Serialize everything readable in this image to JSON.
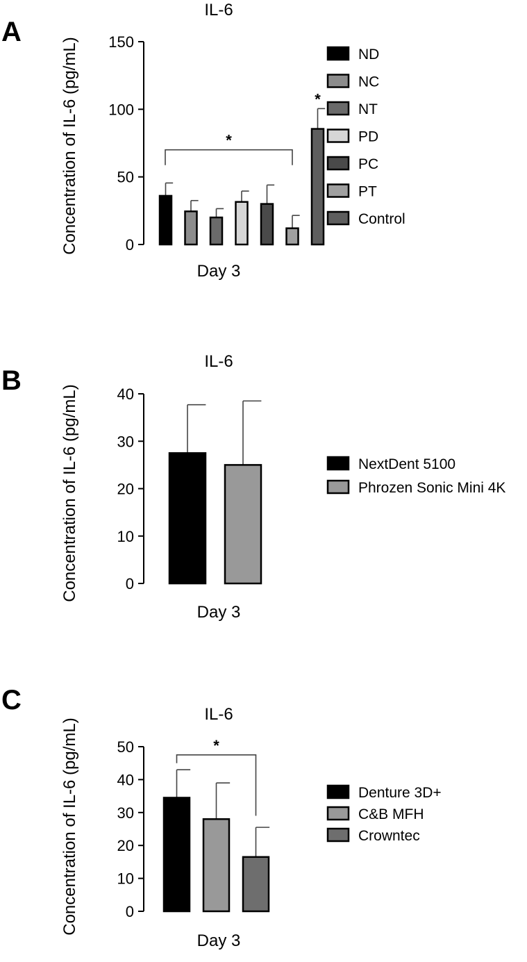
{
  "chart_data": [
    {
      "panel": "A",
      "type": "bar",
      "title": "IL-6",
      "xlabel": "Day 3",
      "ylabel": "Concentration of IL-6 (pg/mL)",
      "ylim": [
        0,
        150
      ],
      "yticks": [
        0,
        50,
        100,
        150
      ],
      "categories": [
        "ND",
        "NC",
        "NT",
        "PD",
        "PC",
        "PT",
        "Control"
      ],
      "values": [
        36,
        24.5,
        20,
        31.5,
        30,
        12,
        85.5
      ],
      "errors": [
        9.5,
        8,
        6.5,
        8,
        14,
        9.5,
        15
      ],
      "colors": [
        "#000000",
        "#8c8c8c",
        "#6a6a6a",
        "#d6d6d6",
        "#4a4a4a",
        "#a0a0a0",
        "#5e5e5e"
      ],
      "legend": [
        "ND",
        "NC",
        "NT",
        "PD",
        "PC",
        "PT",
        "Control"
      ],
      "legend_position": "right",
      "significance": [
        {
          "type": "bracket",
          "from": 0,
          "to": 5,
          "y": 70,
          "label": "*"
        },
        {
          "type": "star",
          "at": 6,
          "label": "*"
        }
      ]
    },
    {
      "panel": "B",
      "type": "bar",
      "title": "IL-6",
      "xlabel": "Day 3",
      "ylabel": "Concentration of IL-6 (pg/mL)",
      "ylim": [
        0,
        40
      ],
      "yticks": [
        0,
        10,
        20,
        30,
        40
      ],
      "categories": [
        "NextDent 5100",
        "Phrozen Sonic Mini 4K"
      ],
      "values": [
        27.5,
        25
      ],
      "errors": [
        10.2,
        13.5
      ],
      "colors": [
        "#000000",
        "#999999"
      ],
      "legend": [
        "NextDent 5100",
        "Phrozen Sonic Mini 4K"
      ],
      "legend_position": "right",
      "significance": []
    },
    {
      "panel": "C",
      "type": "bar",
      "title": "IL-6",
      "xlabel": "Day 3",
      "ylabel": "Concentration of IL-6 (pg/mL)",
      "ylim": [
        0,
        50
      ],
      "yticks": [
        0,
        10,
        20,
        30,
        40,
        50
      ],
      "categories": [
        "Denture 3D+",
        "C&B MFH",
        "Crowntec"
      ],
      "values": [
        34.5,
        28,
        16.5
      ],
      "errors": [
        8.5,
        11,
        9
      ],
      "colors": [
        "#000000",
        "#999999",
        "#6e6e6e"
      ],
      "legend": [
        "Denture 3D+",
        "C&B MFH",
        "Crowntec"
      ],
      "legend_position": "right",
      "significance": [
        {
          "type": "bracket",
          "from": 0,
          "to": 2,
          "y": 47.5,
          "label": "*",
          "left_drop": 45,
          "right_drop": 29
        }
      ]
    }
  ]
}
